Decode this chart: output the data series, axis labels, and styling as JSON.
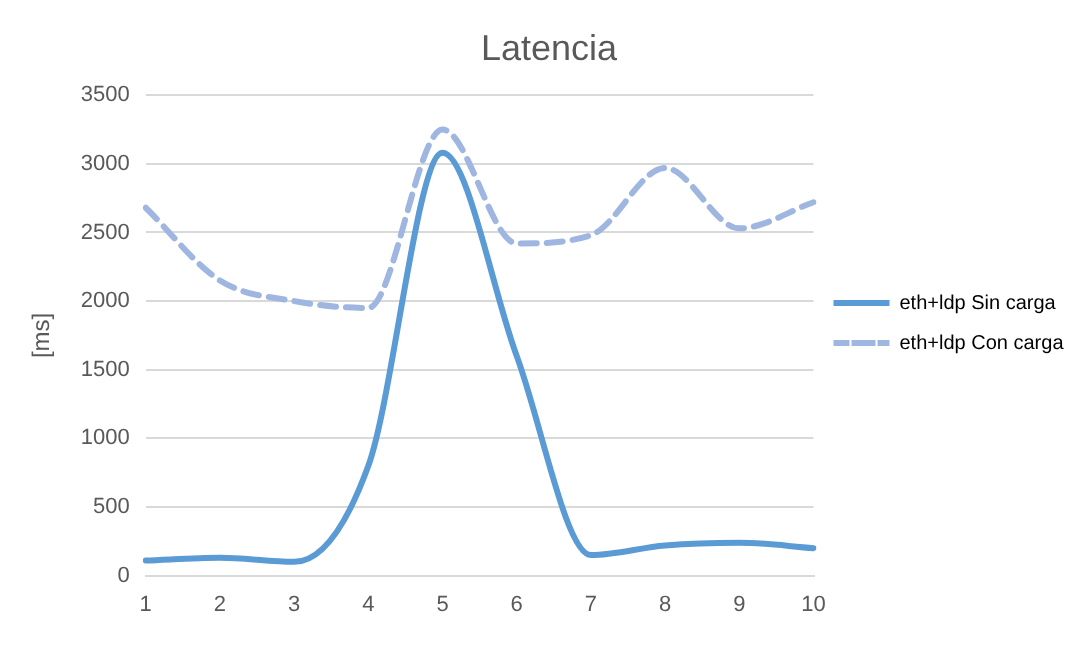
{
  "chart_data": {
    "type": "line",
    "title": "Latencia",
    "ylabel": "[ms]",
    "categories": [
      "1",
      "2",
      "3",
      "4",
      "5",
      "6",
      "7",
      "8",
      "9",
      "10"
    ],
    "series": [
      {
        "name": "eth+ldp Sin carga",
        "color": "#5b9bd5",
        "line_style": "solid",
        "values": [
          110,
          130,
          100,
          800,
          3080,
          1600,
          150,
          220,
          240,
          200
        ]
      },
      {
        "name": "eth+ldp Con carga",
        "color": "#9fb6e0",
        "line_style": "dashed",
        "values": [
          2680,
          2150,
          2000,
          1950,
          3250,
          2420,
          2480,
          2970,
          2530,
          2720
        ]
      }
    ],
    "ylim": [
      0,
      3500
    ],
    "yticks": [
      0,
      500,
      1000,
      1500,
      2000,
      2500,
      3000,
      3500
    ],
    "grid": "y",
    "legend": "right",
    "marker": "none"
  }
}
